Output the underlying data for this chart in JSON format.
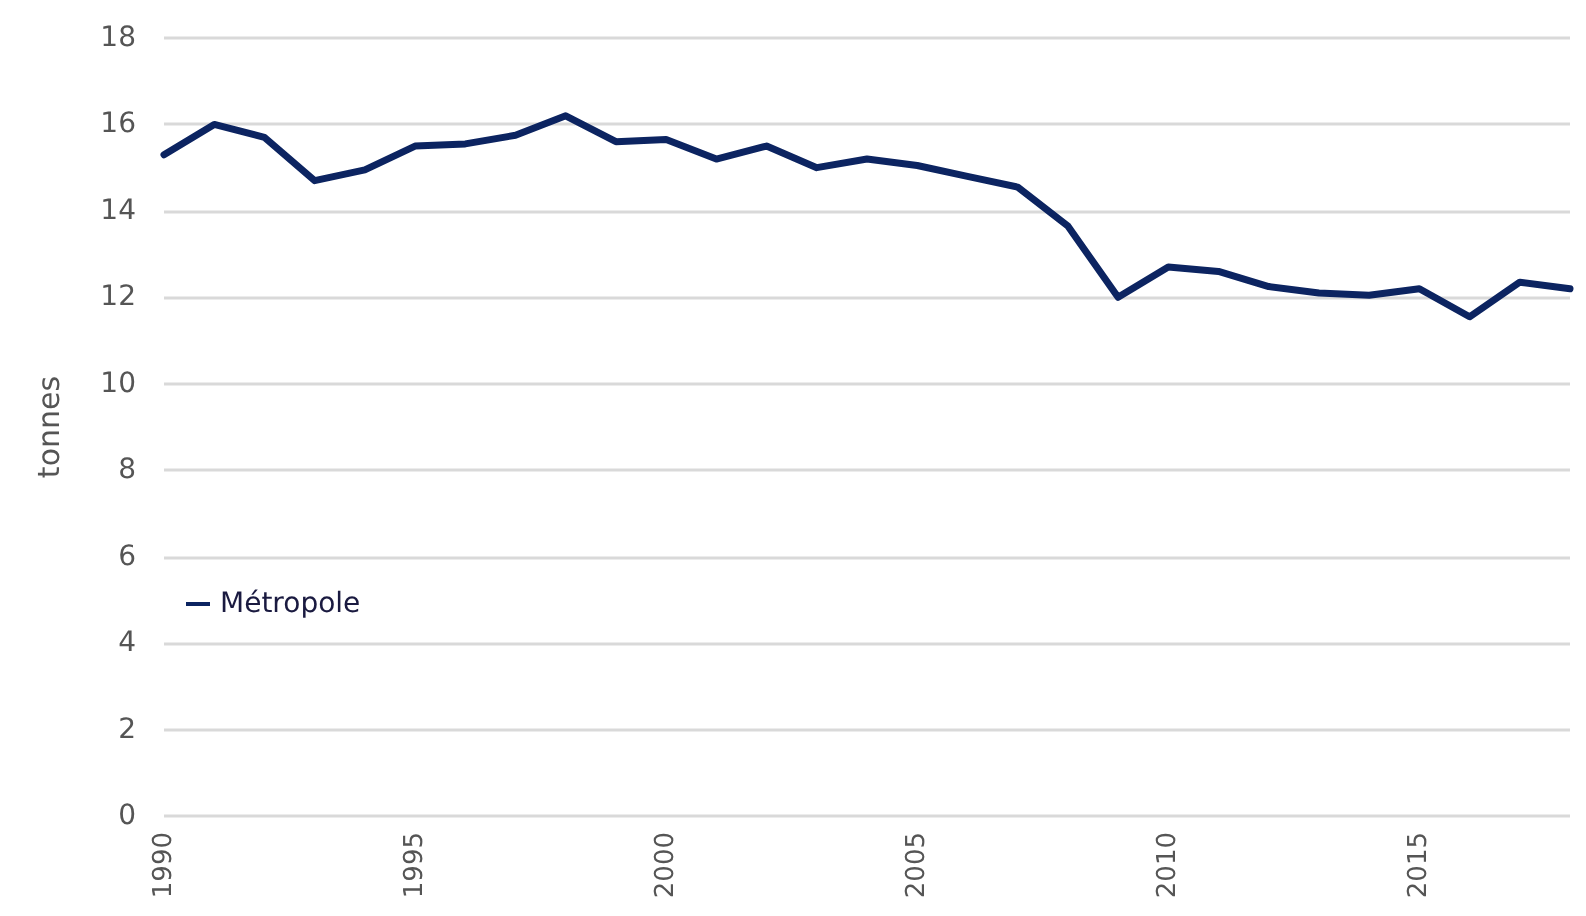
{
  "chart_data": {
    "type": "line",
    "ylabel": "tonnes",
    "categories": [
      "1990",
      null,
      null,
      null,
      null,
      "1995",
      null,
      null,
      null,
      null,
      "2000",
      null,
      null,
      null,
      null,
      "2005",
      null,
      null,
      null,
      null,
      "2010",
      null,
      null,
      null,
      null,
      "2015",
      null,
      null,
      null
    ],
    "series": [
      {
        "name": "Métropole",
        "color": "#0c2461",
        "values": [
          15.3,
          16.0,
          15.7,
          14.7,
          14.95,
          15.5,
          15.55,
          15.75,
          16.2,
          15.6,
          15.65,
          15.2,
          15.5,
          15.0,
          15.2,
          15.05,
          14.8,
          14.55,
          13.65,
          12.0,
          12.7,
          12.6,
          12.25,
          12.1,
          12.05,
          12.2,
          11.55,
          12.35,
          12.2
        ]
      }
    ],
    "ylim": [
      0,
      18
    ],
    "yticks": [
      0,
      2,
      4,
      6,
      8,
      10,
      12,
      14,
      16,
      18
    ],
    "grid": "y",
    "legend": "left",
    "marker": "none",
    "line_style": "solid"
  }
}
